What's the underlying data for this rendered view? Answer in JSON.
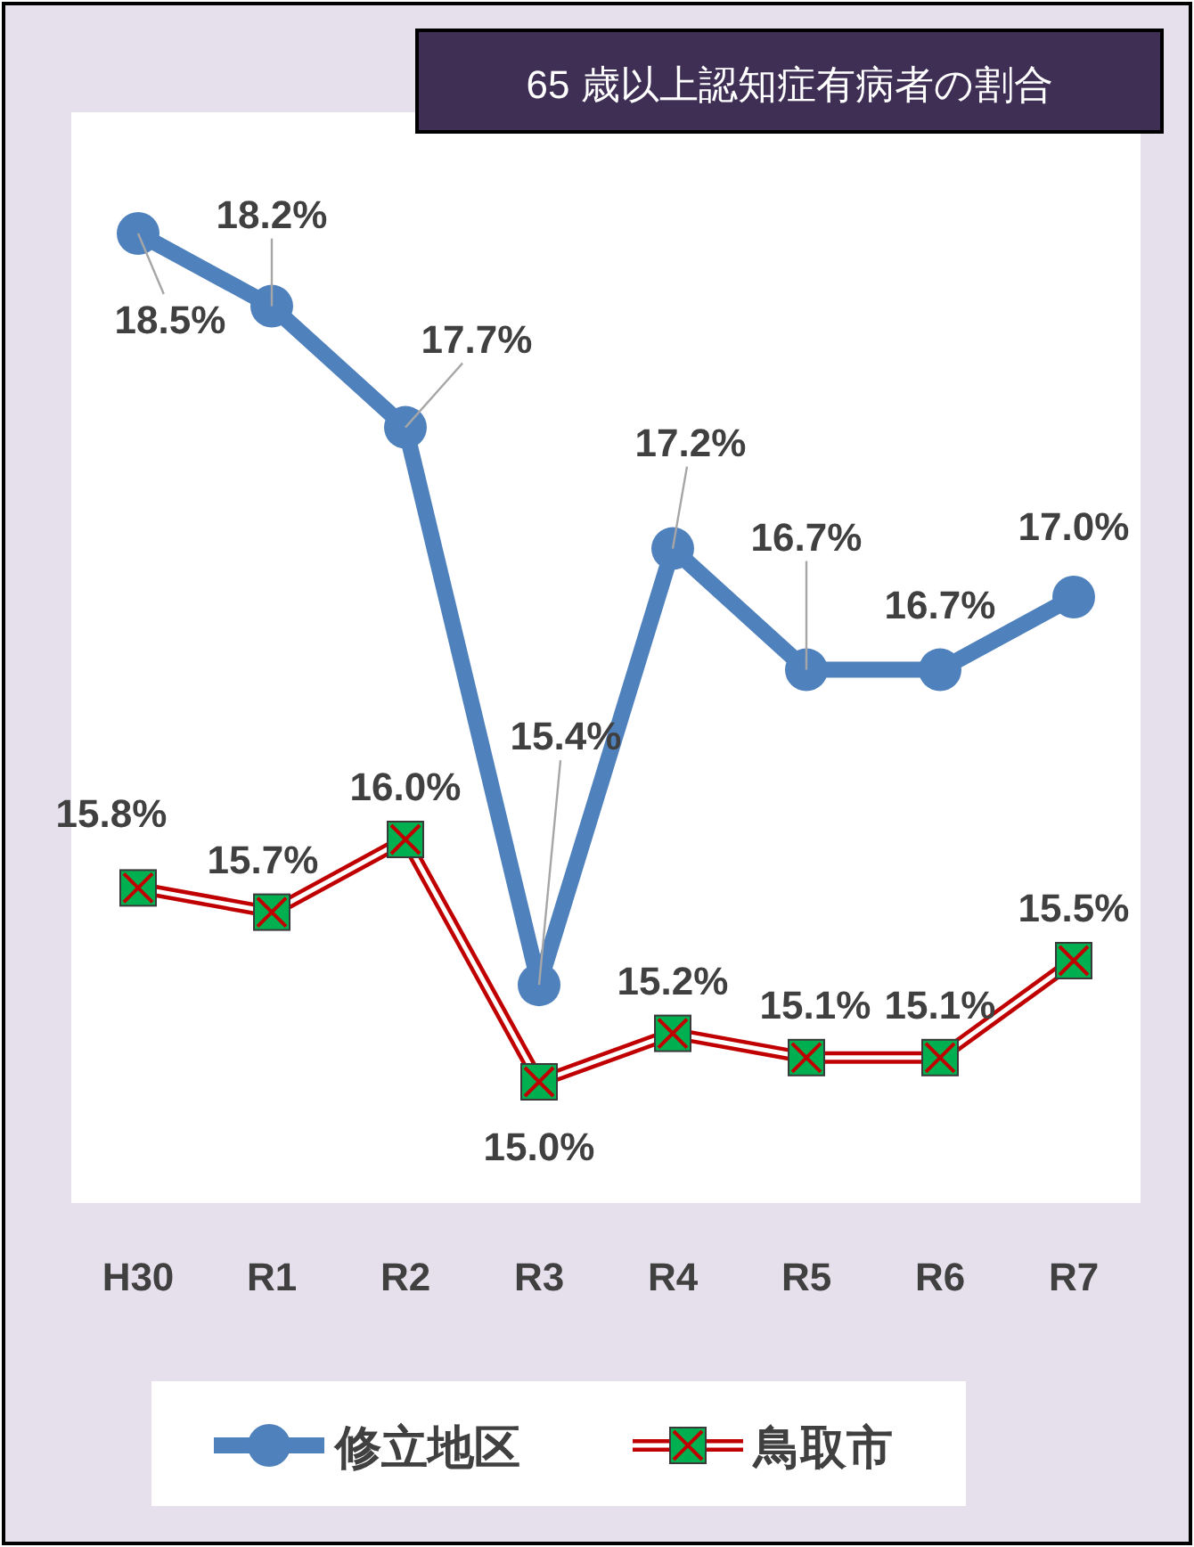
{
  "chart_data": {
    "type": "line",
    "title": "65 歳以上認知症有病者の割合",
    "categories": [
      "H30",
      "R1",
      "R2",
      "R3",
      "R4",
      "R5",
      "R6",
      "R7"
    ],
    "series": [
      {
        "name": "修立地区",
        "color": "#4f81bd",
        "marker": "circle",
        "values": [
          18.5,
          18.2,
          17.7,
          15.4,
          17.2,
          16.7,
          16.7,
          17.0
        ],
        "value_labels": [
          "18.5%",
          "18.2%",
          "17.7%",
          "15.4%",
          "17.2%",
          "16.7%",
          "16.7%",
          "17.0%"
        ]
      },
      {
        "name": "鳥取市",
        "color": "#c00000",
        "marker": "cross",
        "values": [
          15.8,
          15.7,
          16.0,
          15.0,
          15.2,
          15.1,
          15.1,
          15.5
        ],
        "value_labels": [
          "15.8%",
          "15.7%",
          "16.0%",
          "15.0%",
          "15.2%",
          "15.1%",
          "15.1%",
          "15.5%"
        ]
      }
    ],
    "legend": "bottom",
    "tick_labels": "x"
  }
}
